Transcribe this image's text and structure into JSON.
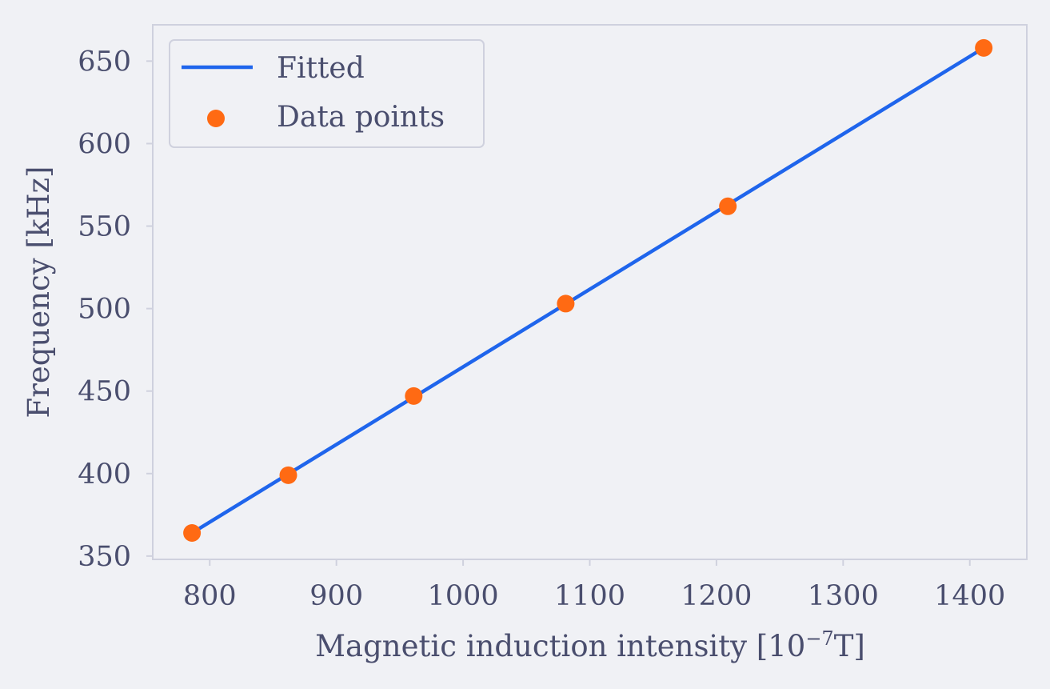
{
  "chart_data": {
    "type": "scatter",
    "xlabel_main": "Magnetic induction intensity [10",
    "xlabel_exp": "−7",
    "xlabel_tail": "T]",
    "ylabel": "Frequency [kHz]",
    "xlim": [
      755,
      1445
    ],
    "ylim": [
      348,
      672
    ],
    "x_ticks": [
      800,
      900,
      1000,
      1100,
      1200,
      1300,
      1400
    ],
    "y_ticks": [
      350,
      400,
      450,
      500,
      550,
      600,
      650
    ],
    "grid": false,
    "legend_position": "top-left",
    "series": [
      {
        "name": "Fitted",
        "kind": "line",
        "color": "#1f65ec",
        "x": [
          786,
          1411
        ],
        "y": [
          364,
          658
        ]
      },
      {
        "name": "Data points",
        "kind": "scatter",
        "color": "#ff6a13",
        "x": [
          786,
          862,
          961,
          1081,
          1209,
          1411
        ],
        "y": [
          364,
          399,
          447,
          503,
          562,
          658
        ]
      }
    ]
  },
  "colors": {
    "background": "#f0f1f5",
    "frame": "#cfd1de",
    "text": "#4a4e6e"
  }
}
